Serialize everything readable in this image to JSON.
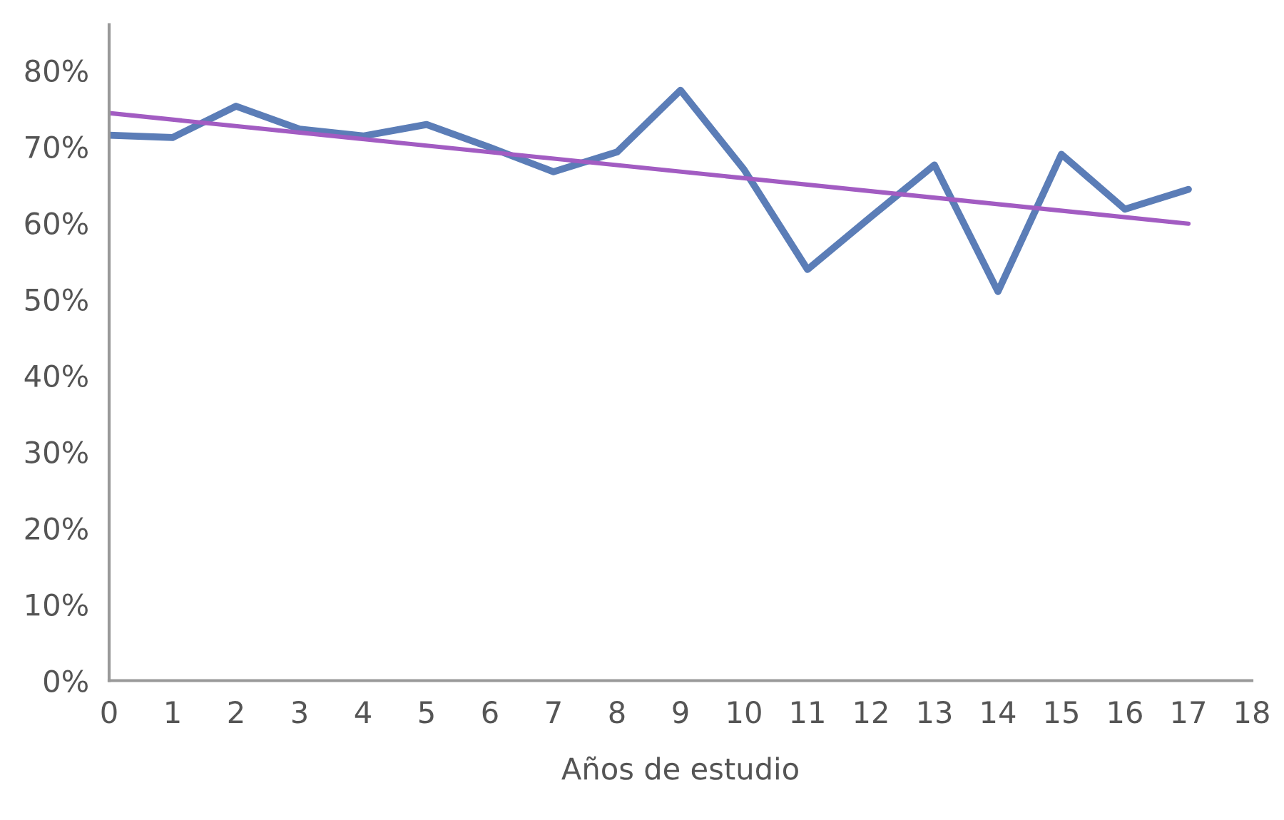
{
  "chart_data": {
    "type": "line",
    "xlabel": "Años de estudio",
    "xlim": [
      0,
      18
    ],
    "xticks": [
      0,
      1,
      2,
      3,
      4,
      5,
      6,
      7,
      8,
      9,
      10,
      11,
      12,
      13,
      14,
      15,
      16,
      17,
      18
    ],
    "ylim": [
      0,
      86
    ],
    "yticks": [
      {
        "value": 0,
        "label": "0%"
      },
      {
        "value": 10,
        "label": "10%"
      },
      {
        "value": 20,
        "label": "20%"
      },
      {
        "value": 30,
        "label": "30%"
      },
      {
        "value": 40,
        "label": "40%"
      },
      {
        "value": 50,
        "label": "50%"
      },
      {
        "value": 60,
        "label": "60%"
      },
      {
        "value": 70,
        "label": "70%"
      },
      {
        "value": 80,
        "label": "80%"
      }
    ],
    "grid": false,
    "legend": false,
    "marker": "none",
    "series": [
      {
        "color": "#5b7db7",
        "x": [
          0,
          1,
          2,
          3,
          4,
          5,
          6,
          7,
          8,
          9,
          10,
          11,
          12,
          13,
          14,
          15,
          16,
          17
        ],
        "values": [
          71.5,
          71.2,
          75.3,
          72.3,
          71.4,
          72.9,
          69.9,
          66.7,
          69.3,
          77.4,
          67.0,
          53.9,
          60.8,
          67.6,
          51.0,
          69.0,
          61.8,
          64.4
        ]
      },
      {
        "color": "#a25cc2",
        "x": [
          0,
          17
        ],
        "values": [
          74.4,
          59.9
        ]
      }
    ]
  }
}
